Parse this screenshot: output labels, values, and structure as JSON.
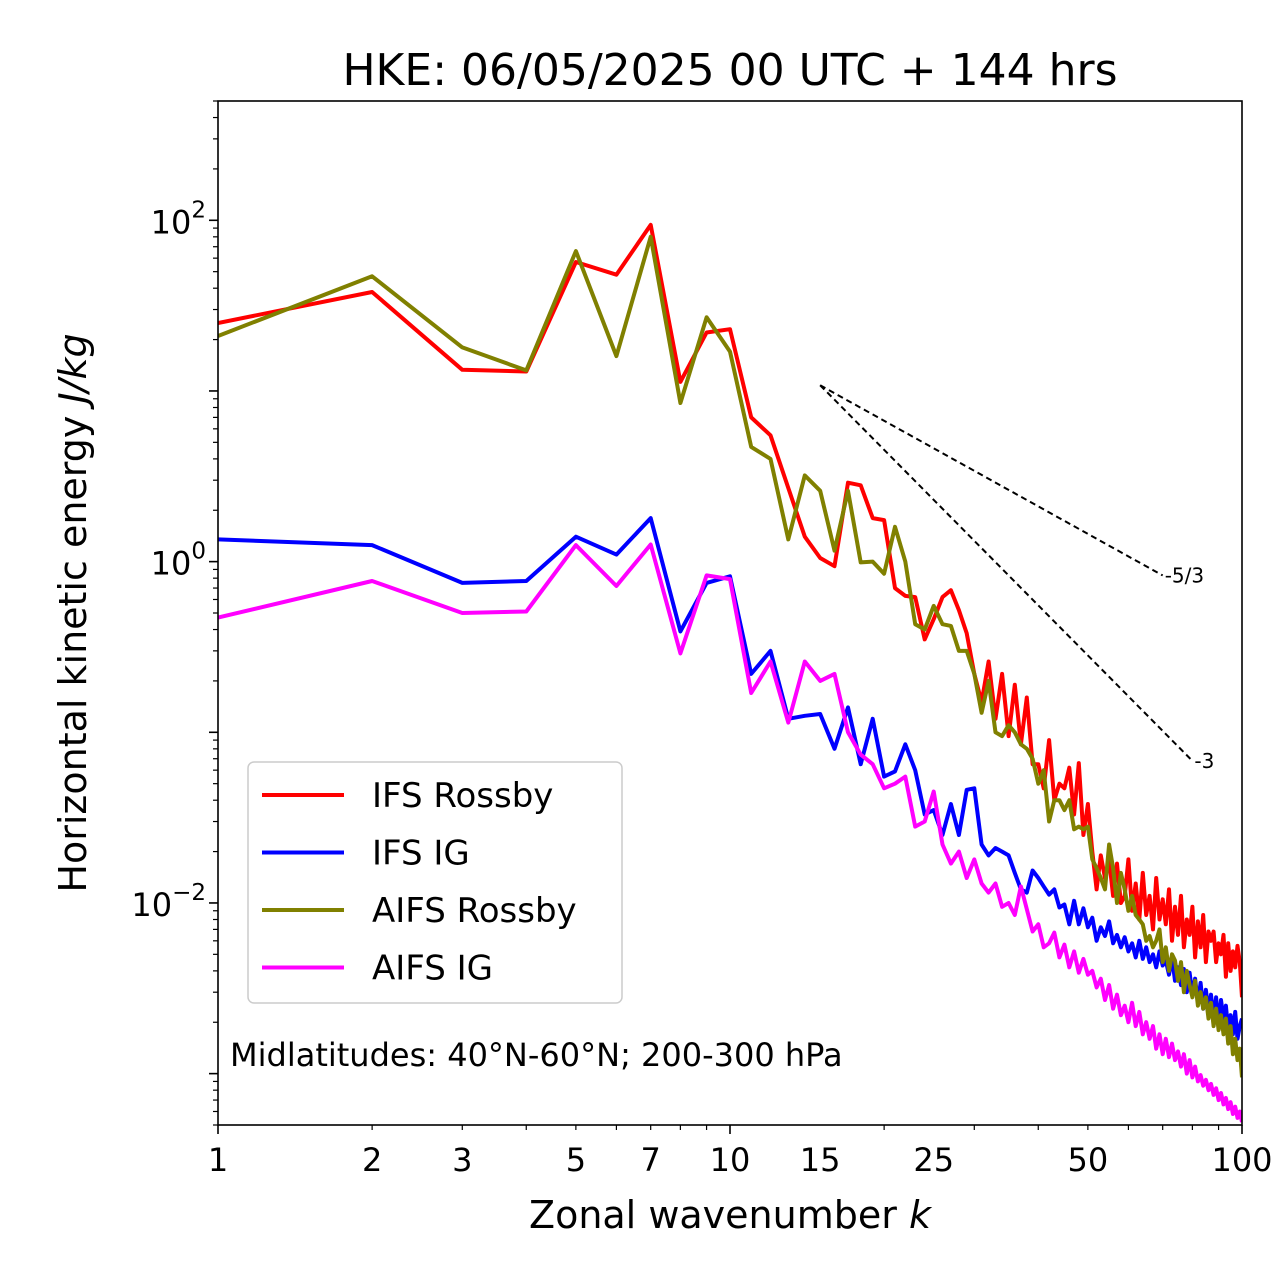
{
  "chart_data": {
    "type": "line",
    "title": "HKE: 06/05/2025 00 UTC + 144 hrs",
    "xlabel": "Zonal wavenumber",
    "xlabel_var": "k",
    "ylabel": "Horizontal kinetic energy",
    "ylabel_units": "J/kg",
    "xscale": "log",
    "yscale": "log",
    "xlim": [
      1,
      100
    ],
    "ylim": [
      0.0005,
      500
    ],
    "x_ticks": [
      {
        "value": 1,
        "label": "1"
      },
      {
        "value": 2,
        "label": "2"
      },
      {
        "value": 3,
        "label": "3"
      },
      {
        "value": 5,
        "label": "5"
      },
      {
        "value": 7,
        "label": "7"
      },
      {
        "value": 10,
        "label": "10"
      },
      {
        "value": 15,
        "label": "15"
      },
      {
        "value": 25,
        "label": "25"
      },
      {
        "value": 50,
        "label": "50"
      },
      {
        "value": 100,
        "label": "100"
      }
    ],
    "y_ticks": [
      {
        "value": 100,
        "base": "10",
        "exp": "2"
      },
      {
        "value": 1,
        "base": "10",
        "exp": "0"
      },
      {
        "value": 0.01,
        "base": "10",
        "exp": "−2"
      }
    ],
    "grid": false,
    "legend_position": "lower-left",
    "annotation": "Midlatitudes: 40°N-60°N; 200-300 hPa",
    "slope_lines": [
      {
        "label": "-5/3",
        "x": [
          15,
          70
        ],
        "y": [
          10.8,
          0.83
        ],
        "color": "#000000"
      },
      {
        "label": "-3",
        "x": [
          15,
          80
        ],
        "y": [
          10.8,
          0.068
        ],
        "color": "#000000"
      }
    ],
    "series": [
      {
        "name": "IFS Rossby",
        "color": "#ff0000",
        "x": [
          1,
          2,
          3,
          4,
          5,
          6,
          7,
          8,
          9,
          10,
          11,
          12,
          13,
          14,
          15,
          16,
          17,
          18,
          19,
          20,
          21,
          22,
          23,
          24,
          25,
          26,
          27,
          28,
          29,
          30,
          31,
          32,
          33,
          34,
          35,
          36,
          37,
          38,
          39,
          40,
          41,
          42,
          43,
          44,
          45,
          46,
          47,
          48,
          49,
          50,
          51,
          52,
          53,
          54,
          55,
          56,
          57,
          58,
          59,
          60,
          61,
          62,
          63,
          64,
          65,
          66,
          67,
          68,
          69,
          70,
          71,
          72,
          73,
          74,
          75,
          76,
          77,
          78,
          79,
          80,
          81,
          82,
          83,
          84,
          85,
          86,
          87,
          88,
          89,
          90,
          91,
          92,
          93,
          94,
          95,
          96,
          97,
          98,
          99,
          100
        ],
        "y": [
          25,
          38,
          13.3,
          13,
          57,
          48,
          94,
          11.3,
          22,
          23,
          7,
          5.5,
          2.7,
          1.4,
          1.05,
          0.94,
          2.9,
          2.8,
          1.8,
          1.75,
          0.7,
          0.63,
          0.62,
          0.35,
          0.46,
          0.62,
          0.68,
          0.52,
          0.38,
          0.22,
          0.15,
          0.26,
          0.12,
          0.22,
          0.095,
          0.19,
          0.085,
          0.16,
          0.065,
          0.065,
          0.047,
          0.09,
          0.04,
          0.05,
          0.047,
          0.062,
          0.033,
          0.066,
          0.025,
          0.038,
          0.02,
          0.012,
          0.019,
          0.014,
          0.018,
          0.011,
          0.017,
          0.01,
          0.011,
          0.018,
          0.009,
          0.013,
          0.008,
          0.015,
          0.0085,
          0.011,
          0.007,
          0.014,
          0.008,
          0.0105,
          0.0075,
          0.012,
          0.006,
          0.0095,
          0.0065,
          0.011,
          0.0055,
          0.008,
          0.0065,
          0.0095,
          0.0048,
          0.0078,
          0.0055,
          0.0085,
          0.0045,
          0.0068,
          0.006,
          0.0068,
          0.0045,
          0.0058,
          0.005,
          0.0065,
          0.0037,
          0.0058,
          0.004,
          0.0052,
          0.0042,
          0.0056,
          0.0045,
          0.0028
        ]
      },
      {
        "name": "IFS IG",
        "color": "#0000ff",
        "x": [
          1,
          2,
          3,
          4,
          5,
          6,
          7,
          8,
          9,
          10,
          11,
          12,
          13,
          14,
          15,
          16,
          17,
          18,
          19,
          20,
          21,
          22,
          23,
          24,
          25,
          26,
          27,
          28,
          29,
          30,
          31,
          32,
          33,
          34,
          35,
          36,
          37,
          38,
          39,
          40,
          41,
          42,
          43,
          44,
          45,
          46,
          47,
          48,
          49,
          50,
          51,
          52,
          53,
          54,
          55,
          56,
          57,
          58,
          59,
          60,
          61,
          62,
          63,
          64,
          65,
          66,
          67,
          68,
          69,
          70,
          71,
          72,
          73,
          74,
          75,
          76,
          77,
          78,
          79,
          80,
          81,
          82,
          83,
          84,
          85,
          86,
          87,
          88,
          89,
          90,
          91,
          92,
          93,
          94,
          95,
          96,
          97,
          98,
          99,
          100
        ],
        "y": [
          1.35,
          1.25,
          0.75,
          0.77,
          1.4,
          1.1,
          1.8,
          0.39,
          0.75,
          0.82,
          0.22,
          0.3,
          0.12,
          0.125,
          0.128,
          0.08,
          0.14,
          0.065,
          0.12,
          0.055,
          0.059,
          0.085,
          0.06,
          0.033,
          0.035,
          0.025,
          0.038,
          0.025,
          0.046,
          0.047,
          0.022,
          0.019,
          0.021,
          0.02,
          0.019,
          0.015,
          0.012,
          0.0115,
          0.0155,
          0.014,
          0.0125,
          0.0112,
          0.012,
          0.0094,
          0.0098,
          0.0075,
          0.0103,
          0.0075,
          0.0093,
          0.0072,
          0.0082,
          0.006,
          0.0072,
          0.0064,
          0.0078,
          0.0058,
          0.0065,
          0.0055,
          0.0063,
          0.0052,
          0.0058,
          0.0048,
          0.006,
          0.0047,
          0.0055,
          0.0045,
          0.005,
          0.0042,
          0.0052,
          0.0043,
          0.0046,
          0.0038,
          0.0048,
          0.0035,
          0.0042,
          0.0033,
          0.0041,
          0.003,
          0.0039,
          0.0029,
          0.0036,
          0.0026,
          0.0034,
          0.0024,
          0.0031,
          0.0023,
          0.0029,
          0.0021,
          0.0028,
          0.0019,
          0.0027,
          0.0021,
          0.0025,
          0.0018,
          0.0022,
          0.0017,
          0.0023,
          0.0016,
          0.0019,
          0.0021
        ]
      },
      {
        "name": "AIFS Rossby",
        "color": "#808000",
        "x": [
          1,
          2,
          3,
          4,
          5,
          6,
          7,
          8,
          9,
          10,
          11,
          12,
          13,
          14,
          15,
          16,
          17,
          18,
          19,
          20,
          21,
          22,
          23,
          24,
          25,
          26,
          27,
          28,
          29,
          30,
          31,
          32,
          33,
          34,
          35,
          36,
          37,
          38,
          39,
          40,
          41,
          42,
          43,
          44,
          45,
          46,
          47,
          48,
          49,
          50,
          51,
          52,
          53,
          54,
          55,
          56,
          57,
          58,
          59,
          60,
          61,
          62,
          63,
          64,
          65,
          66,
          67,
          68,
          69,
          70,
          71,
          72,
          73,
          74,
          75,
          76,
          77,
          78,
          79,
          80,
          81,
          82,
          83,
          84,
          85,
          86,
          87,
          88,
          89,
          90,
          91,
          92,
          93,
          94,
          95,
          96,
          97,
          98,
          99,
          100
        ],
        "y": [
          21,
          47,
          18,
          13.2,
          66,
          16,
          80,
          8.5,
          27,
          17,
          4.7,
          4,
          1.35,
          3.2,
          2.6,
          1.16,
          2.6,
          0.99,
          1.0,
          0.85,
          1.6,
          1.0,
          0.43,
          0.4,
          0.55,
          0.43,
          0.42,
          0.3,
          0.3,
          0.22,
          0.13,
          0.2,
          0.1,
          0.095,
          0.11,
          0.1,
          0.085,
          0.08,
          0.07,
          0.05,
          0.06,
          0.03,
          0.04,
          0.04,
          0.035,
          0.04,
          0.027,
          0.028,
          0.027,
          0.028,
          0.018,
          0.016,
          0.014,
          0.012,
          0.022,
          0.016,
          0.01,
          0.015,
          0.012,
          0.009,
          0.011,
          0.0085,
          0.008,
          0.0075,
          0.006,
          0.0064,
          0.0055,
          0.006,
          0.007,
          0.0045,
          0.0055,
          0.004,
          0.005,
          0.0046,
          0.0035,
          0.0045,
          0.003,
          0.004,
          0.0033,
          0.0028,
          0.0035,
          0.0025,
          0.003,
          0.0024,
          0.0028,
          0.0021,
          0.0026,
          0.0019,
          0.0024,
          0.0018,
          0.0022,
          0.0017,
          0.0021,
          0.0015,
          0.0019,
          0.0013,
          0.0016,
          0.0012,
          0.0014,
          0.00095
        ]
      },
      {
        "name": "AIFS IG",
        "color": "#ff00ff",
        "x": [
          1,
          2,
          3,
          4,
          5,
          6,
          7,
          8,
          9,
          10,
          11,
          12,
          13,
          14,
          15,
          16,
          17,
          18,
          19,
          20,
          21,
          22,
          23,
          24,
          25,
          26,
          27,
          28,
          29,
          30,
          31,
          32,
          33,
          34,
          35,
          36,
          37,
          38,
          39,
          40,
          41,
          42,
          43,
          44,
          45,
          46,
          47,
          48,
          49,
          50,
          51,
          52,
          53,
          54,
          55,
          56,
          57,
          58,
          59,
          60,
          61,
          62,
          63,
          64,
          65,
          66,
          67,
          68,
          69,
          70,
          71,
          72,
          73,
          74,
          75,
          76,
          77,
          78,
          79,
          80,
          81,
          82,
          83,
          84,
          85,
          86,
          87,
          88,
          89,
          90,
          91,
          92,
          93,
          94,
          95,
          96,
          97,
          98,
          99,
          100
        ],
        "y": [
          0.47,
          0.77,
          0.5,
          0.51,
          1.25,
          0.72,
          1.26,
          0.29,
          0.83,
          0.79,
          0.17,
          0.26,
          0.114,
          0.26,
          0.2,
          0.22,
          0.1,
          0.074,
          0.065,
          0.047,
          0.05,
          0.055,
          0.028,
          0.03,
          0.045,
          0.022,
          0.017,
          0.02,
          0.014,
          0.018,
          0.013,
          0.0115,
          0.013,
          0.0095,
          0.01,
          0.0085,
          0.0125,
          0.0092,
          0.0068,
          0.0075,
          0.0055,
          0.0058,
          0.0067,
          0.0048,
          0.0057,
          0.0042,
          0.0052,
          0.0039,
          0.0047,
          0.0038,
          0.004,
          0.0032,
          0.0036,
          0.0027,
          0.0033,
          0.0024,
          0.0029,
          0.0022,
          0.0025,
          0.002,
          0.0026,
          0.0019,
          0.0023,
          0.0017,
          0.002,
          0.0016,
          0.0019,
          0.0014,
          0.0017,
          0.0013,
          0.0016,
          0.00125,
          0.0015,
          0.0012,
          0.00135,
          0.0011,
          0.0013,
          0.001,
          0.0012,
          0.00095,
          0.0011,
          0.0009,
          0.00098,
          0.00085,
          0.00092,
          0.0008,
          0.00087,
          0.00075,
          0.00082,
          0.0007,
          0.00077,
          0.00066,
          0.00072,
          0.00062,
          0.00068,
          0.00058,
          0.00064,
          0.00055,
          0.0006,
          0.00052
        ]
      }
    ]
  }
}
